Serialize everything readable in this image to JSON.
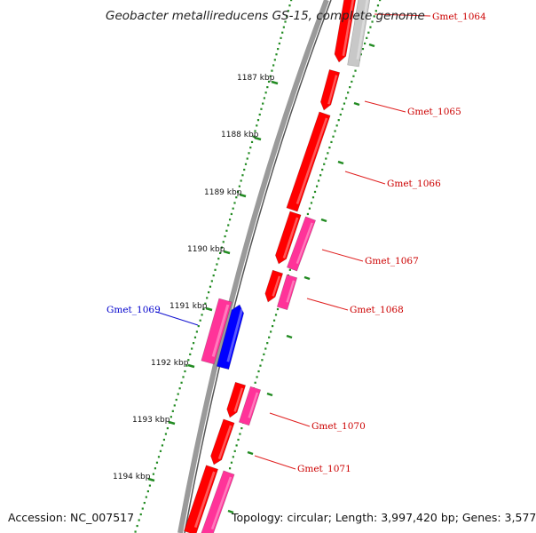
{
  "title": "Geobacter metallireducens GS-15, complete genome",
  "footer": {
    "accession": "Accession: NC_007517",
    "summary": "Topology: circular; Length: 3,997,420 bp; Genes: 3,577"
  },
  "scale_ticks": [
    "1187 kbp",
    "1188 kbp",
    "1189 kbp",
    "1190 kbp",
    "1191 kbp",
    "1192 kbp",
    "1193 kbp",
    "1194 kbp"
  ],
  "genes": [
    {
      "name": "Gmet_1064",
      "color": "#cc0000"
    },
    {
      "name": "Gmet_1065",
      "color": "#cc0000"
    },
    {
      "name": "Gmet_1066",
      "color": "#cc0000"
    },
    {
      "name": "Gmet_1067",
      "color": "#cc0000"
    },
    {
      "name": "Gmet_1068",
      "color": "#cc0000"
    },
    {
      "name": "Gmet_1069",
      "color": "#0000cc"
    },
    {
      "name": "Gmet_1070",
      "color": "#cc0000"
    },
    {
      "name": "Gmet_1071",
      "color": "#cc0000"
    }
  ],
  "colors": {
    "cds_red": "#ff0000",
    "cds_pink": "#ff3399",
    "cds_blue": "#0000ff",
    "cds_gray": "#c8c8c8",
    "backbone": "#888888",
    "ruler": "#228B22"
  }
}
